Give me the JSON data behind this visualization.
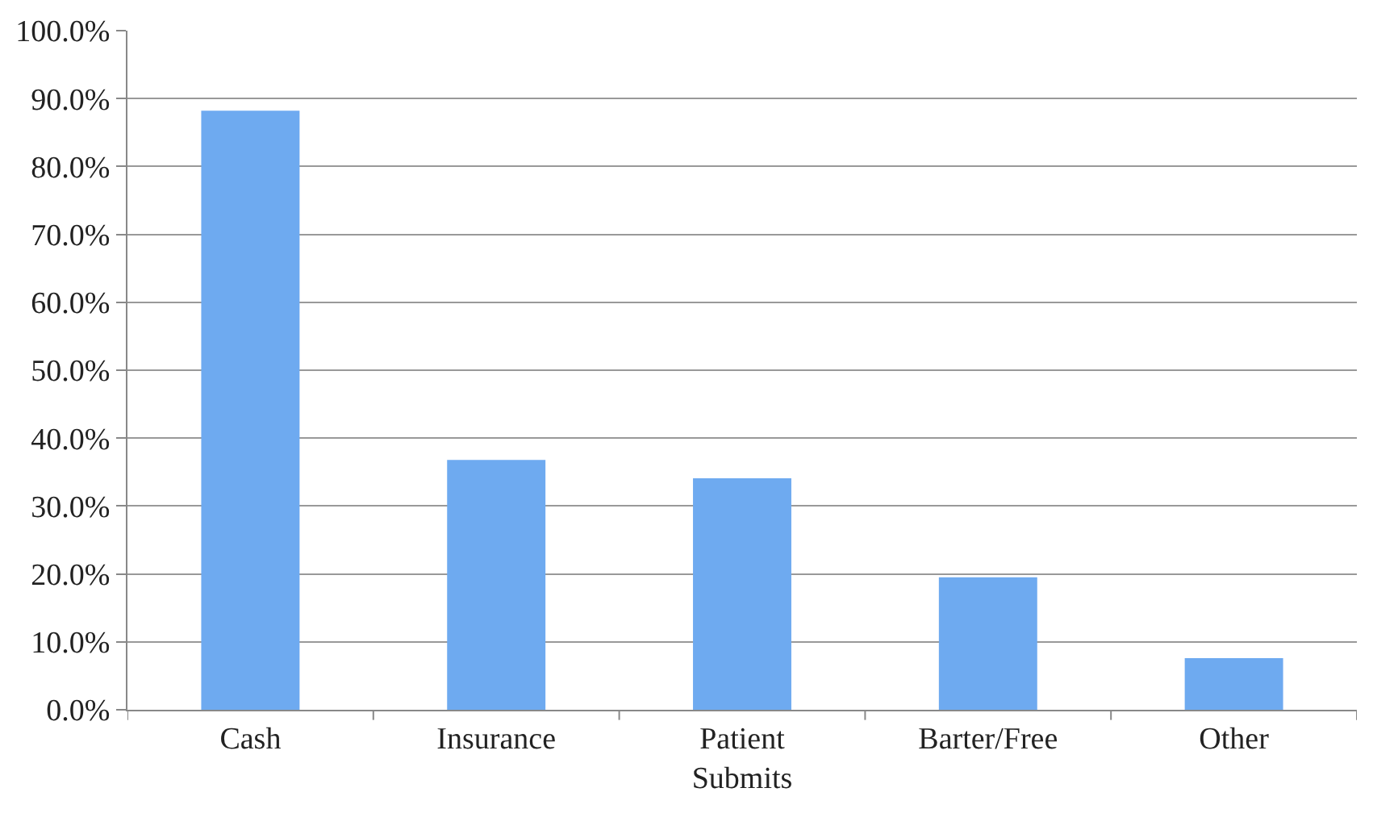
{
  "chart_data": {
    "type": "bar",
    "categories": [
      "Cash",
      "Insurance",
      "Patient Submits",
      "Barter/Free",
      "Other"
    ],
    "values": [
      88.2,
      36.8,
      34.1,
      19.5,
      7.6
    ],
    "color": "#6eaaf0",
    "ylim": [
      0,
      100
    ],
    "yticks": [
      {
        "value": 0,
        "label": "0.0%"
      },
      {
        "value": 10,
        "label": "10.0%"
      },
      {
        "value": 20,
        "label": "20.0%"
      },
      {
        "value": 30,
        "label": "30.0%"
      },
      {
        "value": 40,
        "label": "40.0%"
      },
      {
        "value": 50,
        "label": "50.0%"
      },
      {
        "value": 60,
        "label": "60.0%"
      },
      {
        "value": 70,
        "label": "70.0%"
      },
      {
        "value": 80,
        "label": "80.0%"
      },
      {
        "value": 90,
        "label": "90.0%"
      },
      {
        "value": 100,
        "label": "100.0%"
      }
    ],
    "grid": "y"
  }
}
